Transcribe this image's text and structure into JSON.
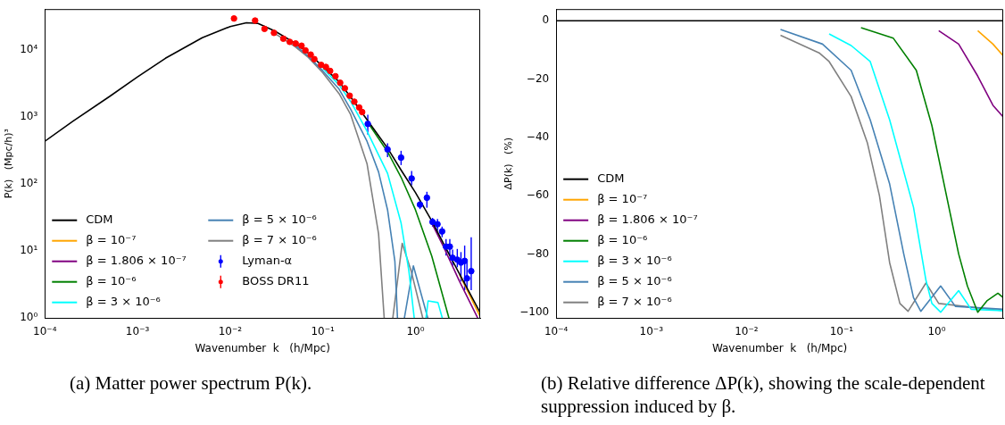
{
  "chart_data": [
    {
      "type": "line",
      "xlabel": "Wavenumber  k   (h/Mpc)",
      "ylabel": "P(k)   (Mpc/h)³",
      "log": "xy",
      "legend": "bottom left",
      "xlim": [
        0.0001,
        5
      ],
      "xticks": [
        {
          "value": 0.0001,
          "label": "10⁻⁴"
        },
        {
          "value": 0.001,
          "label": "10⁻³"
        },
        {
          "value": 0.01,
          "label": "10⁻²"
        },
        {
          "value": 0.1,
          "label": "10⁻¹"
        },
        {
          "value": 1,
          "label": "10⁰"
        }
      ],
      "ylim": [
        1,
        40000
      ],
      "yticks": [
        {
          "value": 1,
          "label": "10⁰"
        },
        {
          "value": 10,
          "label": "10¹"
        },
        {
          "value": 100,
          "label": "10²"
        },
        {
          "value": 1000,
          "label": "10³"
        },
        {
          "value": 10000,
          "label": "10⁴"
        }
      ],
      "annotations": [
        "(a) Matter power spectrum P(k)."
      ],
      "series": [
        {
          "name": "CDM",
          "color": "#000000",
          "x": [
            0.0001,
            0.0002,
            0.0005,
            0.001,
            0.002,
            0.005,
            0.01,
            0.015,
            0.02,
            0.03,
            0.05,
            0.07,
            0.1,
            0.15,
            0.2,
            0.3,
            0.5,
            0.7,
            1,
            1.5,
            2,
            3,
            5
          ],
          "values": [
            430,
            850,
            2000,
            3900,
            7400,
            15000,
            22000,
            25000,
            24500,
            19000,
            12500,
            8800,
            5600,
            3300,
            1950,
            900,
            340,
            160,
            74,
            28,
            13,
            4.5,
            1.2
          ]
        },
        {
          "name": "β = 10⁻⁷",
          "color": "#ffa500",
          "x": [
            3,
            5
          ],
          "values": [
            4.4,
            1.05
          ]
        },
        {
          "name": "β = 1.806 × 10⁻⁷",
          "color": "#800080",
          "x": [
            1.5,
            2,
            3,
            4.7
          ],
          "values": [
            26,
            11.7,
            3.5,
            1
          ]
        },
        {
          "name": "β = 10⁻⁶",
          "color": "#008000",
          "x": [
            0.3,
            0.5,
            0.7,
            1,
            1.5,
            2,
            2.3
          ],
          "values": [
            855,
            300,
            125,
            41,
            8.4,
            2,
            1
          ]
        },
        {
          "name": "β = 3 × 10⁻⁶",
          "color": "#00ffff",
          "x": [
            0.1,
            0.15,
            0.2,
            0.3,
            0.5,
            0.7,
            0.85,
            0.97,
            1.1,
            1.3,
            1.37,
            1.75,
            1.95
          ],
          "values": [
            5260,
            2970,
            1680,
            610,
            143,
            26,
            5,
            1,
            null,
            1,
            1.8,
            1.7,
            1
          ]
        },
        {
          "name": "β = 5 × 10⁻⁶",
          "color": "#4682b4",
          "x": [
            0.05,
            0.07,
            0.1,
            0.15,
            0.2,
            0.3,
            0.4,
            0.5,
            0.6,
            0.64,
            0.7,
            0.76,
            0.95,
            1.36
          ],
          "values": [
            11700,
            7900,
            4800,
            2570,
            1290,
            430,
            150,
            41,
            7,
            1,
            null,
            1,
            6,
            1
          ]
        },
        {
          "name": "β = 7 × 10⁻⁶",
          "color": "#808080",
          "x": [
            0.03,
            0.05,
            0.07,
            0.1,
            0.15,
            0.2,
            0.3,
            0.4,
            0.46,
            0.52,
            0.57,
            0.72,
            0.9,
            1.2
          ],
          "values": [
            17500,
            11100,
            7600,
            4500,
            2200,
            1070,
            200,
            18,
            1,
            null,
            1,
            13,
            5,
            1
          ]
        },
        {
          "name": "Lyman-α",
          "type": "scatter",
          "marker": "circle",
          "color": "#0000ff",
          "x": [
            0.306,
            0.5,
            0.7,
            0.91,
            1.12,
            1.33,
            1.53,
            1.73,
            1.94,
            2.14,
            2.35,
            2.52,
            2.83,
            3.1,
            3.4,
            3.6,
            4.0
          ],
          "values": [
            780,
            325,
            245,
            120,
            49,
            62,
            27,
            25,
            19.5,
            11.6,
            11.6,
            7.9,
            7.4,
            6.7,
            7.1,
            3.9,
            5
          ],
          "errors": [
            [
              540,
              1070
            ],
            [
              250,
              400
            ],
            [
              190,
              310
            ],
            [
              95,
              155
            ],
            [
              42,
              56
            ],
            [
              44,
              76
            ],
            [
              23,
              31
            ],
            [
              20,
              30
            ],
            [
              16,
              23
            ],
            [
              8.5,
              15
            ],
            [
              8.5,
              15
            ],
            [
              6,
              10.5
            ],
            [
              5.7,
              10.7
            ],
            [
              3.5,
              9.6
            ],
            [
              2.6,
              12
            ],
            [
              2.7,
              6.8
            ],
            [
              2.6,
              16
            ]
          ]
        },
        {
          "name": "BOSS DR11",
          "type": "scatter",
          "marker": "circle",
          "color": "#ff0000",
          "x": [
            0.011,
            0.0186,
            0.0235,
            0.0297,
            0.0375,
            0.044,
            0.051,
            0.059,
            0.065,
            0.074,
            0.081,
            0.096,
            0.108,
            0.12,
            0.137,
            0.154,
            0.173,
            0.195,
            0.219,
            0.247,
            0.266
          ],
          "values": [
            29000,
            27000,
            20300,
            17700,
            14500,
            13000,
            12300,
            11400,
            9700,
            8400,
            7200,
            5900,
            5500,
            4800,
            4000,
            3200,
            2650,
            2050,
            1670,
            1370,
            1170
          ]
        }
      ]
    },
    {
      "type": "line",
      "xlabel": "Wavenumber  k   (h/Mpc)",
      "ylabel": "ΔP(k)   (%)",
      "log": "x",
      "legend": "bottom left",
      "xlim": [
        0.0001,
        5
      ],
      "xticks": [
        {
          "value": 0.0001,
          "label": "10⁻⁴"
        },
        {
          "value": 0.001,
          "label": "10⁻³"
        },
        {
          "value": 0.01,
          "label": "10⁻²"
        },
        {
          "value": 0.1,
          "label": "10⁻¹"
        },
        {
          "value": 1,
          "label": "10⁰"
        }
      ],
      "ylim": [
        -102,
        4
      ],
      "yticks": [
        0,
        -20,
        -40,
        -60,
        -80,
        -100
      ],
      "annotations": [
        "(b) Relative difference ΔP(k), showing the scale-dependent suppression induced by β."
      ],
      "series": [
        {
          "name": "CDM",
          "color": "#000000",
          "x": [
            0.0001,
            5
          ],
          "values": [
            0,
            0
          ]
        },
        {
          "name": "β = 10⁻⁷",
          "color": "#ffa500",
          "x": [
            2.7,
            3.9,
            5
          ],
          "values": [
            -3.4,
            -8,
            -12
          ]
        },
        {
          "name": "β = 1.806 × 10⁻⁷",
          "color": "#800080",
          "x": [
            1.05,
            1.7,
            2.7,
            3.9,
            5
          ],
          "values": [
            -3.4,
            -8,
            -19,
            -29,
            -33
          ]
        },
        {
          "name": "β = 10⁻⁶",
          "color": "#008000",
          "x": [
            0.16,
            0.35,
            0.61,
            0.89,
            1.23,
            1.7,
            2.1,
            2.7,
            3.4,
            4.4,
            5
          ],
          "values": [
            -2.4,
            -6,
            -17,
            -36,
            -58,
            -80,
            -91,
            -100,
            -96,
            -93.5,
            -95
          ]
        },
        {
          "name": "β = 3 × 10⁻⁶",
          "color": "#00ffff",
          "x": [
            0.074,
            0.126,
            0.2,
            0.32,
            0.57,
            0.77,
            0.89,
            1.1,
            1.7,
            2.3,
            5
          ],
          "values": [
            -4.5,
            -8.5,
            -14,
            -34,
            -64,
            -89,
            -97,
            -100,
            -92.6,
            -99,
            -99.5
          ]
        },
        {
          "name": "β = 5 × 10⁻⁶",
          "color": "#4682b4",
          "x": [
            0.0228,
            0.063,
            0.126,
            0.2,
            0.32,
            0.45,
            0.57,
            0.68,
            1.1,
            1.57,
            5
          ],
          "values": [
            -3,
            -8,
            -17,
            -34,
            -56,
            -80,
            -95,
            -99.7,
            -91,
            -98,
            -99
          ]
        },
        {
          "name": "β = 7 × 10⁻⁶",
          "color": "#808080",
          "x": [
            0.0228,
            0.058,
            0.074,
            0.126,
            0.187,
            0.25,
            0.32,
            0.41,
            0.5,
            0.77,
            1.05,
            5
          ],
          "values": [
            -5,
            -11,
            -14,
            -26,
            -42,
            -60,
            -83,
            -97,
            -99.7,
            -90,
            -97,
            -99.5
          ]
        }
      ]
    }
  ]
}
